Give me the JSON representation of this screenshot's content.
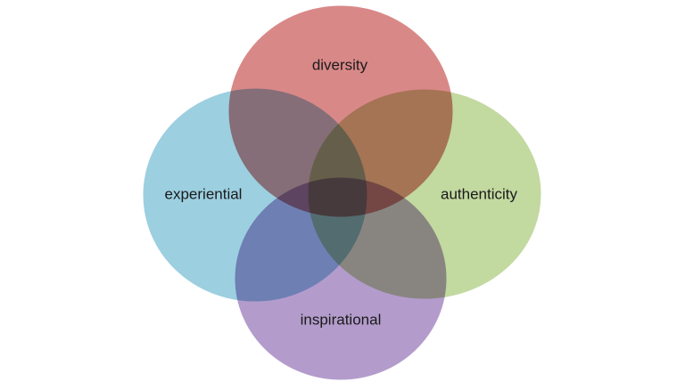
{
  "diagram": {
    "type": "venn",
    "sets": [
      {
        "key": "diversity",
        "label": "diversity",
        "color": "#d98888"
      },
      {
        "key": "authenticity",
        "label": "authenticity",
        "color": "#c2d9a0"
      },
      {
        "key": "inspirational",
        "label": "inspirational",
        "color": "#b39ccc"
      },
      {
        "key": "experiential",
        "label": "experiential",
        "color": "#9ccfe0"
      }
    ]
  }
}
